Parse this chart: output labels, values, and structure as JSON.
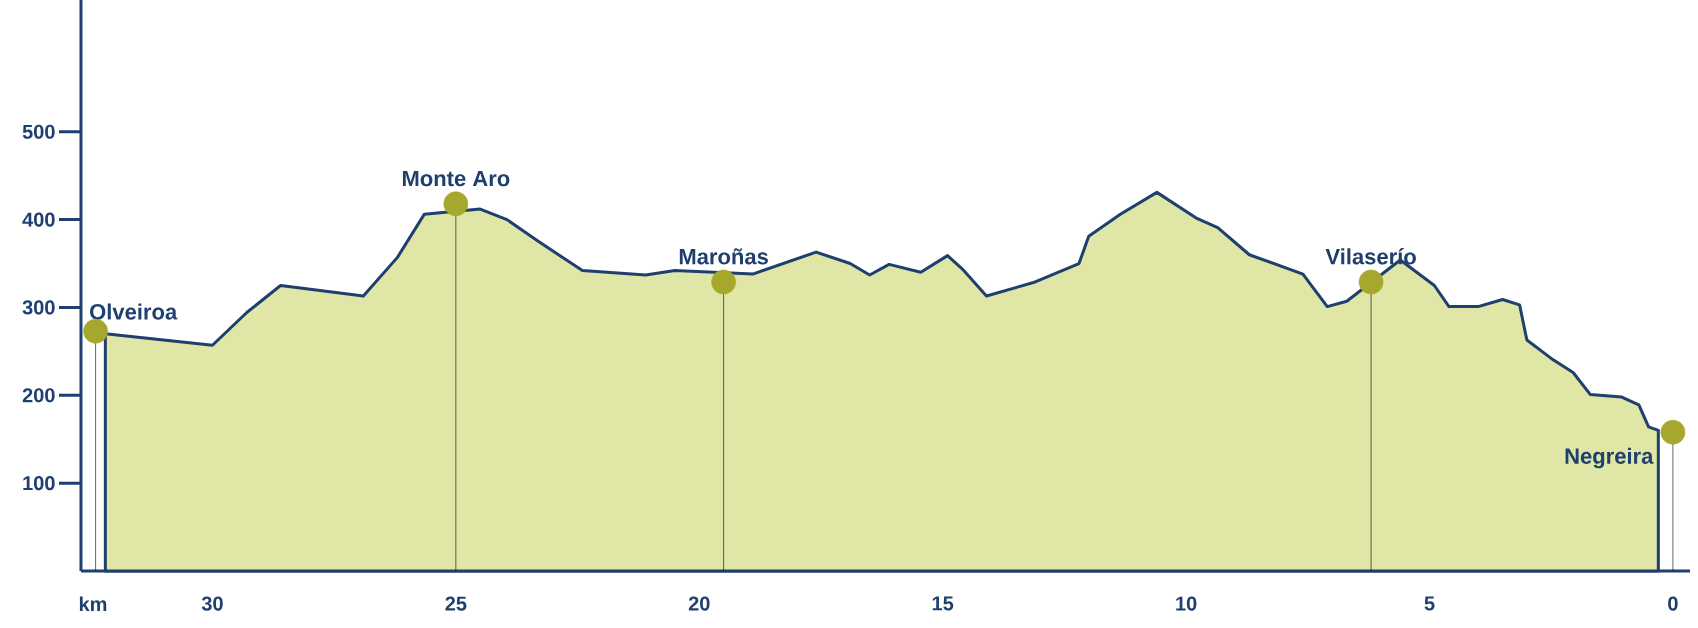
{
  "chart_data": {
    "type": "area",
    "xlabel": "km",
    "xlim": [
      32.7,
      -0.35
    ],
    "ylim": [
      0,
      650
    ],
    "xticks": [
      30,
      25,
      20,
      15,
      10,
      5,
      0
    ],
    "yticks": [
      100,
      200,
      300,
      400,
      500
    ],
    "grid": false,
    "series": [
      {
        "color": "#dfe6a6",
        "x": [
          32.2,
          30.0,
          29.3,
          28.6,
          26.9,
          26.2,
          25.65,
          25.0,
          24.5,
          23.95,
          23.3,
          22.4,
          21.1,
          20.5,
          19.5,
          18.9,
          17.6,
          16.9,
          16.5,
          16.1,
          15.45,
          14.9,
          14.6,
          14.1,
          13.1,
          12.2,
          12.0,
          11.35,
          10.6,
          9.8,
          9.35,
          8.7,
          7.6,
          7.1,
          6.7,
          6.2,
          5.6,
          4.9,
          4.6,
          4.0,
          3.5,
          3.15,
          3.0,
          2.5,
          2.05,
          1.7,
          1.05,
          0.7,
          0.5,
          0.3
        ],
        "values": [
          270,
          257,
          294,
          325,
          313,
          357,
          406,
          null,
          412,
          400,
          375,
          342,
          337,
          342,
          null,
          338,
          363,
          350,
          337,
          349,
          340,
          359,
          344,
          313,
          329,
          350,
          381,
          406,
          431,
          402,
          391,
          360,
          338,
          301,
          307,
          null,
          354,
          325,
          301,
          301,
          309,
          303,
          263,
          242,
          226,
          201,
          198,
          189,
          164,
          160
        ]
      },
      {
        "type": "lollipop",
        "color": "#a5a82c",
        "marker": "circle",
        "x": [
          32.4,
          25.0,
          19.5,
          6.2,
          0
        ],
        "values": [
          273,
          418,
          329,
          329,
          158
        ]
      }
    ],
    "annotations": [
      {
        "text": "Olveiroa",
        "x": 32.4,
        "y": 273
      },
      {
        "text": "Monte Aro",
        "x": 25.0,
        "y": 418
      },
      {
        "text": "Maroñas",
        "x": 19.5,
        "y": 329
      },
      {
        "text": "Vilaserío",
        "x": 6.2,
        "y": 329
      },
      {
        "text": "Negreira",
        "x": 0,
        "y": 158
      }
    ]
  }
}
